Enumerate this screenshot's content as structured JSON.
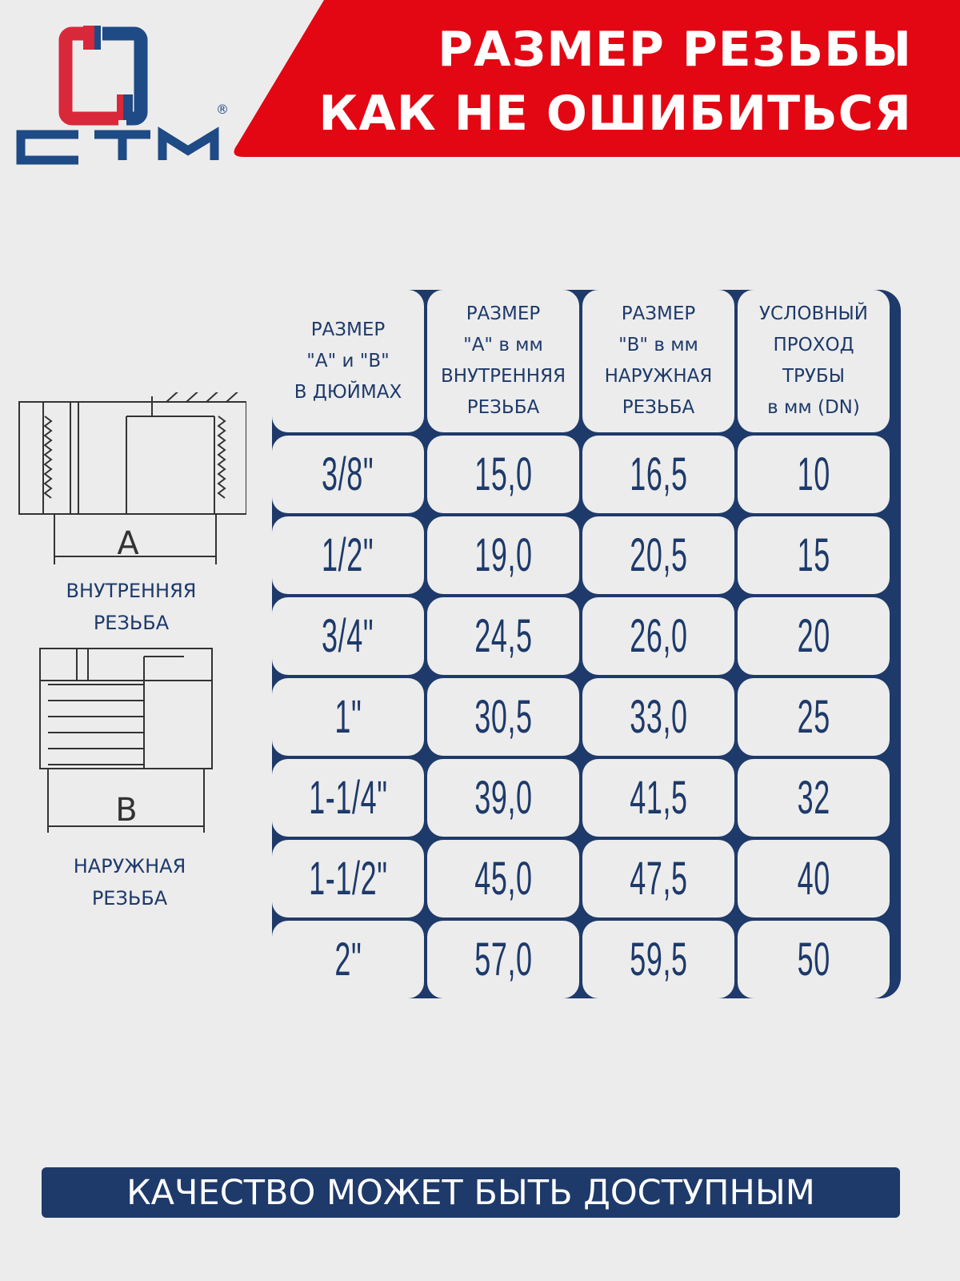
{
  "logo": {
    "text": "СТМ",
    "registered": "®",
    "colors": {
      "red": "#d8283a",
      "blue": "#1e4a86"
    }
  },
  "header": {
    "line1": "РАЗМЕР РЕЗЬБЫ",
    "line2": "КАК НЕ ОШИБИТЬСЯ",
    "color": "#e30613"
  },
  "diagrams": {
    "inner": {
      "letter": "A",
      "caption1": "ВНУТРЕННЯЯ",
      "caption2": "РЕЗЬБА"
    },
    "outer": {
      "letter": "B",
      "caption1": "НАРУЖНАЯ",
      "caption2": "РЕЗЬБА"
    }
  },
  "table": {
    "headers": [
      [
        "РАЗМЕР",
        "\"А\" и \"В\"",
        "В ДЮЙМАХ"
      ],
      [
        "РАЗМЕР",
        "\"А\" в мм",
        "ВНУТРЕННЯЯ",
        "РЕЗЬБА"
      ],
      [
        "РАЗМЕР",
        "\"В\" в мм",
        "НАРУЖНАЯ",
        "РЕЗЬБА"
      ],
      [
        "УСЛОВНЫЙ",
        "ПРОХОД",
        "ТРУБЫ",
        "в мм (DN)"
      ]
    ],
    "rows": [
      [
        "3/8\"",
        "15,0",
        "16,5",
        "10"
      ],
      [
        "1/2\"",
        "19,0",
        "20,5",
        "15"
      ],
      [
        "3/4\"",
        "24,5",
        "26,0",
        "20"
      ],
      [
        "1\"",
        "30,5",
        "33,0",
        "25"
      ],
      [
        "1-1/4\"",
        "39,0",
        "41,5",
        "32"
      ],
      [
        "1-1/2\"",
        "45,0",
        "47,5",
        "40"
      ],
      [
        "2\"",
        "57,0",
        "59,5",
        "50"
      ]
    ]
  },
  "footer": {
    "text": "КАЧЕСТВО МОЖЕТ БЫТЬ ДОСТУПНЫМ"
  }
}
